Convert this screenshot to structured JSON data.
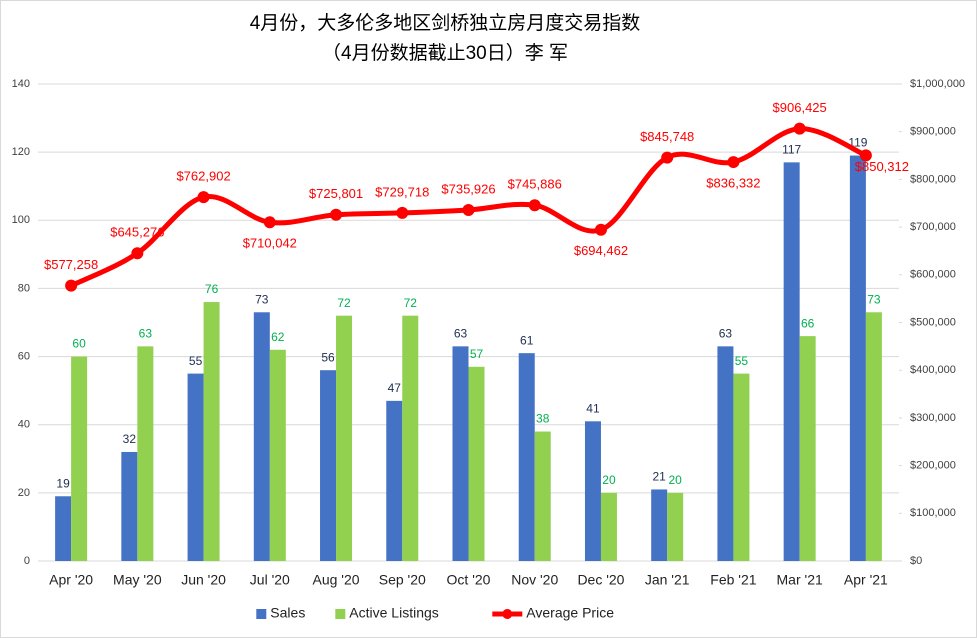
{
  "chart_data": {
    "type": "bar",
    "title": "4月份，大多伦多地区剑桥独立房月度交易指数",
    "subtitle": "（4月份数据截止30日）李 军",
    "categories": [
      "Apr '20",
      "May '20",
      "Jun '20",
      "Jul '20",
      "Aug '20",
      "Sep '20",
      "Oct '20",
      "Nov '20",
      "Dec '20",
      "Jan '21",
      "Feb '21",
      "Mar '21",
      "Apr '21"
    ],
    "series": [
      {
        "name": "Sales",
        "type": "bar",
        "color": "#4472c4",
        "label_color": "#1f2d50",
        "values": [
          19,
          32,
          55,
          73,
          56,
          47,
          63,
          61,
          41,
          21,
          63,
          117,
          119
        ]
      },
      {
        "name": "Active Listings",
        "type": "bar",
        "color": "#92d050",
        "label_color": "#00b050",
        "values": [
          60,
          63,
          76,
          62,
          72,
          72,
          57,
          38,
          20,
          20,
          55,
          66,
          73
        ]
      },
      {
        "name": "Average Price",
        "type": "line",
        "axis": "y2",
        "color": "#ff0000",
        "label_color": "#ff0000",
        "values": [
          577258,
          645276,
          762902,
          710042,
          725801,
          729718,
          735926,
          745886,
          694462,
          845748,
          836332,
          906425,
          850312
        ],
        "value_labels": [
          "$577,258",
          "$645,276",
          "$762,902",
          "$710,042",
          "$725,801",
          "$729,718",
          "$735,926",
          "$745,886",
          "$694,462",
          "$845,748",
          "$836,332",
          "$906,425",
          "$850,312"
        ]
      }
    ],
    "ylim": [
      0,
      140
    ],
    "yticks": [
      0,
      20,
      40,
      60,
      80,
      100,
      120,
      140
    ],
    "y2lim": [
      0,
      1000000
    ],
    "y2ticks": [
      {
        "value": 0,
        "label": "$0"
      },
      {
        "value": 100000,
        "label": "$100,000"
      },
      {
        "value": 200000,
        "label": "$200,000"
      },
      {
        "value": 300000,
        "label": "$300,000"
      },
      {
        "value": 400000,
        "label": "$400,000"
      },
      {
        "value": 500000,
        "label": "$500,000"
      },
      {
        "value": 600000,
        "label": "$600,000"
      },
      {
        "value": 700000,
        "label": "$700,000"
      },
      {
        "value": 800000,
        "label": "$800,000"
      },
      {
        "value": 900000,
        "label": "$900,000"
      },
      {
        "value": 1000000,
        "label": "$1,000,000"
      }
    ],
    "grid": true,
    "legend": "bottom"
  }
}
